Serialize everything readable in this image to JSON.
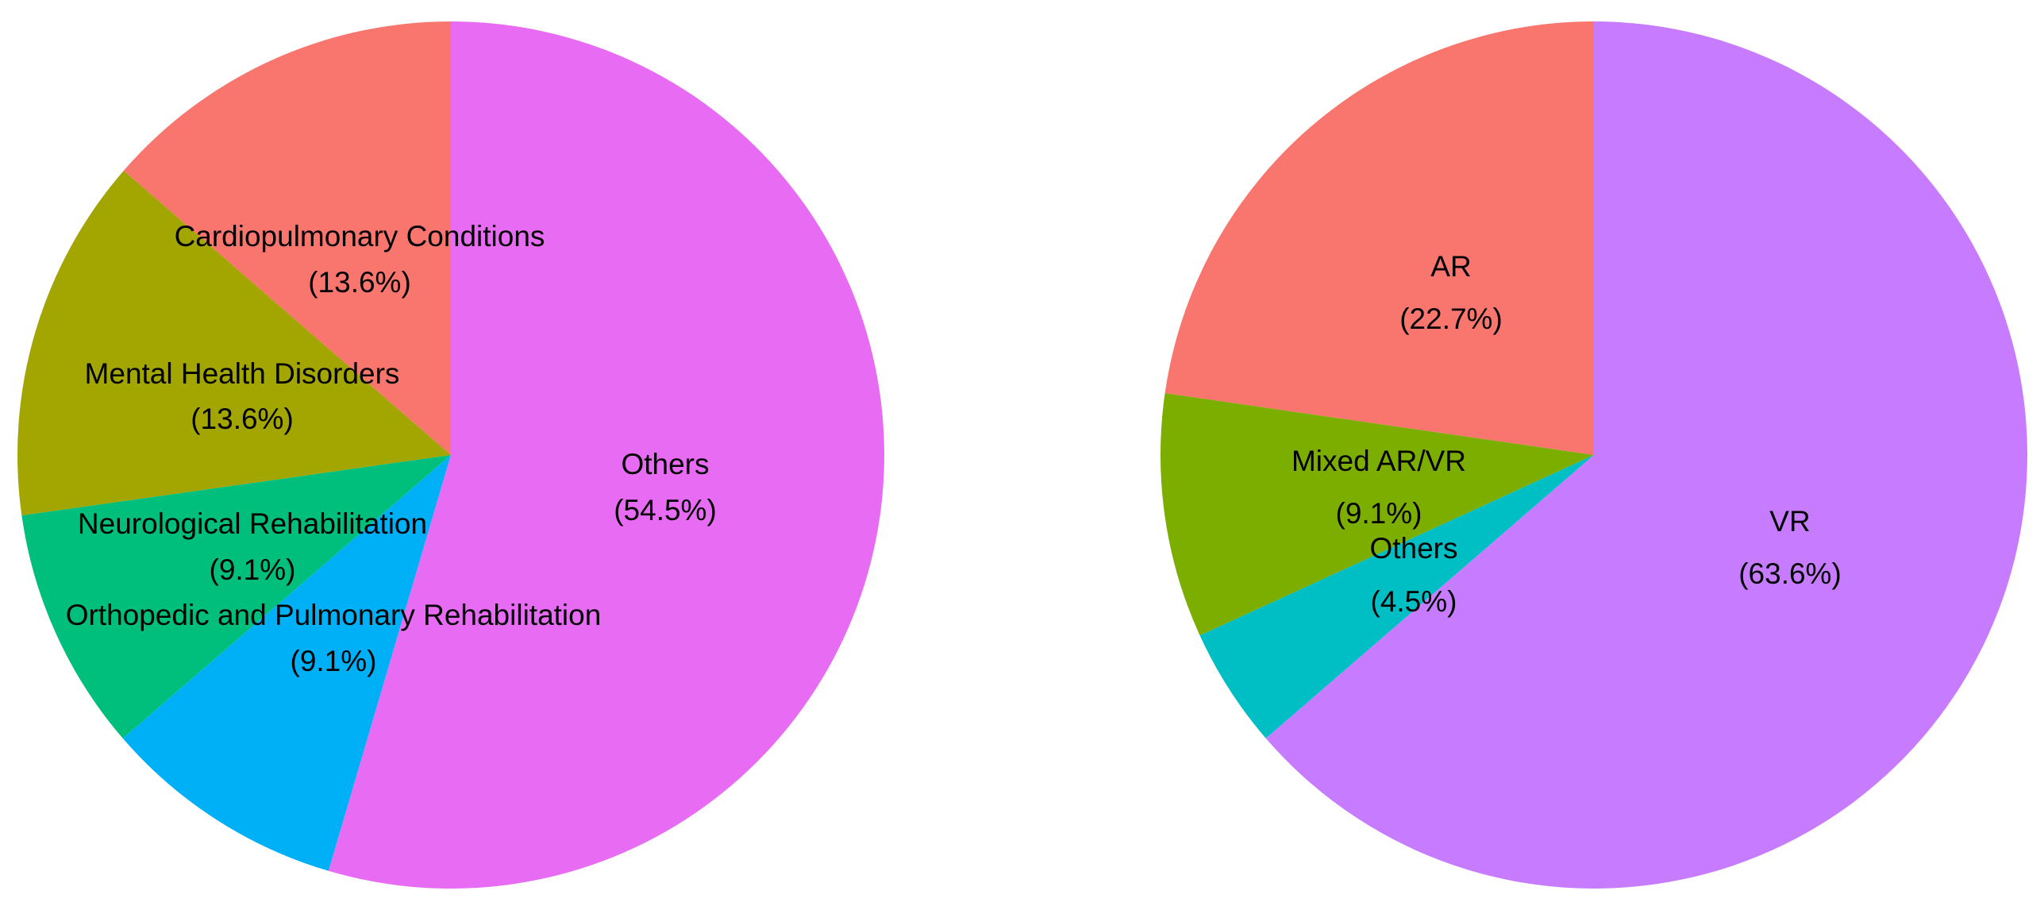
{
  "chart_data": [
    {
      "type": "pie",
      "slices": [
        {
          "label": "Cardiopulmonary Conditions",
          "value": 13.6,
          "pct_label": "(13.6%)",
          "color": "#F8766D"
        },
        {
          "label": "Mental Health Disorders",
          "value": 13.6,
          "pct_label": "(13.6%)",
          "color": "#A3A500"
        },
        {
          "label": "Neurological Rehabilitation",
          "value": 9.1,
          "pct_label": "(9.1%)",
          "color": "#00BF7D"
        },
        {
          "label": "Orthopedic and Pulmonary Rehabilitation",
          "value": 9.1,
          "pct_label": "(9.1%)",
          "color": "#00B0F6"
        },
        {
          "label": "Others",
          "value": 54.5,
          "pct_label": "(54.5%)",
          "color": "#E76BF3"
        }
      ]
    },
    {
      "type": "pie",
      "slices": [
        {
          "label": "AR",
          "value": 22.7,
          "pct_label": "(22.7%)",
          "color": "#F8766D"
        },
        {
          "label": "Mixed AR/VR",
          "value": 9.1,
          "pct_label": "(9.1%)",
          "color": "#7CAE00"
        },
        {
          "label": "Others",
          "value": 4.5,
          "pct_label": "(4.5%)",
          "color": "#00BFC4"
        },
        {
          "label": "VR",
          "value": 63.6,
          "pct_label": "(63.6%)",
          "color": "#C77CFF"
        }
      ]
    }
  ]
}
